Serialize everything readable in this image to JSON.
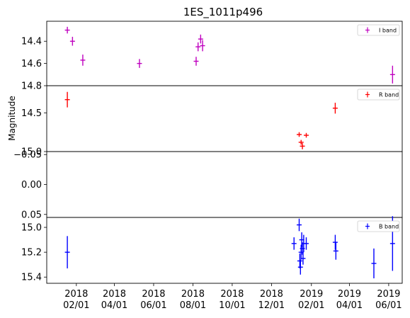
{
  "chart_data": {
    "type": "scatter",
    "title": "1ES_1011p496",
    "ylabel": "Magnitude",
    "xlabel": "",
    "x_range": [
      "2017-12-17",
      "2019-06-22"
    ],
    "x_ticks": [
      {
        "date": "2018-02-01",
        "label": [
          "2018",
          "02/01"
        ]
      },
      {
        "date": "2018-04-01",
        "label": [
          "2018",
          "04/01"
        ]
      },
      {
        "date": "2018-06-01",
        "label": [
          "2018",
          "06/01"
        ]
      },
      {
        "date": "2018-08-01",
        "label": [
          "2018",
          "08/01"
        ]
      },
      {
        "date": "2018-10-01",
        "label": [
          "2018",
          "10/01"
        ]
      },
      {
        "date": "2018-12-01",
        "label": [
          "2018",
          "12/01"
        ]
      },
      {
        "date": "2019-02-01",
        "label": [
          "2019",
          "02/01"
        ]
      },
      {
        "date": "2019-04-01",
        "label": [
          "2019",
          "04/01"
        ]
      },
      {
        "date": "2019-06-01",
        "label": [
          "2019",
          "06/01"
        ]
      }
    ],
    "panels": [
      {
        "band": "I band",
        "color": "#bf00bf",
        "ylim": [
          14.8,
          14.22
        ],
        "y_inverted": true,
        "yticks": [
          14.4,
          14.6,
          14.8
        ],
        "ytick_labels": [
          "14.4",
          "14.6",
          "14.8"
        ],
        "legend": {
          "label": "I band",
          "loc": "upper right"
        },
        "points": [
          {
            "x": "2018-01-18",
            "y": 14.3,
            "yerr": 0.03
          },
          {
            "x": "2018-01-26",
            "y": 14.4,
            "yerr": 0.04
          },
          {
            "x": "2018-02-11",
            "y": 14.57,
            "yerr": 0.05
          },
          {
            "x": "2018-05-10",
            "y": 14.6,
            "yerr": 0.04
          },
          {
            "x": "2018-08-06",
            "y": 14.58,
            "yerr": 0.04
          },
          {
            "x": "2018-08-09",
            "y": 14.45,
            "yerr": 0.04
          },
          {
            "x": "2018-08-13",
            "y": 14.38,
            "yerr": 0.04
          },
          {
            "x": "2018-08-16",
            "y": 14.44,
            "yerr": 0.05
          },
          {
            "x": "2019-06-07",
            "y": 14.7,
            "yerr": 0.08
          }
        ]
      },
      {
        "band": "R band",
        "color": "#ff0000",
        "ylim": [
          15.0,
          14.15
        ],
        "y_inverted": true,
        "yticks": [
          14.5,
          15.0
        ],
        "ytick_labels": [
          "14.5",
          "15.0"
        ],
        "legend": {
          "label": "R band",
          "loc": "upper right"
        },
        "points": [
          {
            "x": "2018-01-18",
            "y": 14.33,
            "yerr": 0.1
          },
          {
            "x": "2019-01-13",
            "y": 14.78,
            "yerr": 0.03
          },
          {
            "x": "2019-01-16",
            "y": 14.88,
            "yerr": 0.03
          },
          {
            "x": "2019-01-18",
            "y": 14.93,
            "yerr": 0.04
          },
          {
            "x": "2019-01-24",
            "y": 14.79,
            "yerr": 0.03
          },
          {
            "x": "2019-03-10",
            "y": 14.44,
            "yerr": 0.07
          }
        ]
      },
      {
        "band": "",
        "color": "",
        "ylim": [
          0.055,
          -0.055
        ],
        "y_inverted": false,
        "yticks": [
          0.05,
          0.0,
          -0.05
        ],
        "ytick_labels": [
          "0.05",
          "0.00",
          "−0.05"
        ],
        "legend": null,
        "points": []
      },
      {
        "band": "B band",
        "color": "#0000ff",
        "ylim": [
          15.45,
          14.92
        ],
        "y_inverted": true,
        "yticks": [
          15.0,
          15.2,
          15.4
        ],
        "ytick_labels": [
          "15.0",
          "15.2",
          "15.4"
        ],
        "legend": {
          "label": "B band",
          "loc": "upper right"
        },
        "points": [
          {
            "x": "2018-01-18",
            "y": 15.2,
            "yerr": 0.13
          },
          {
            "x": "2019-01-05",
            "y": 15.13,
            "yerr": 0.05
          },
          {
            "x": "2019-01-13",
            "y": 14.98,
            "yerr": 0.05
          },
          {
            "x": "2019-01-14",
            "y": 15.27,
            "yerr": 0.06
          },
          {
            "x": "2019-01-15",
            "y": 15.32,
            "yerr": 0.06
          },
          {
            "x": "2019-01-16",
            "y": 15.2,
            "yerr": 0.06
          },
          {
            "x": "2019-01-17",
            "y": 15.1,
            "yerr": 0.06
          },
          {
            "x": "2019-01-18",
            "y": 15.17,
            "yerr": 0.05
          },
          {
            "x": "2019-01-19",
            "y": 15.25,
            "yerr": 0.05
          },
          {
            "x": "2019-01-20",
            "y": 15.13,
            "yerr": 0.07
          },
          {
            "x": "2019-01-24",
            "y": 15.13,
            "yerr": 0.05
          },
          {
            "x": "2019-03-10",
            "y": 15.12,
            "yerr": 0.06
          },
          {
            "x": "2019-03-11",
            "y": 15.19,
            "yerr": 0.07
          },
          {
            "x": "2019-05-09",
            "y": 15.29,
            "yerr": 0.12
          },
          {
            "x": "2019-06-07",
            "y": 15.13,
            "yerr": 0.22
          }
        ]
      }
    ]
  }
}
